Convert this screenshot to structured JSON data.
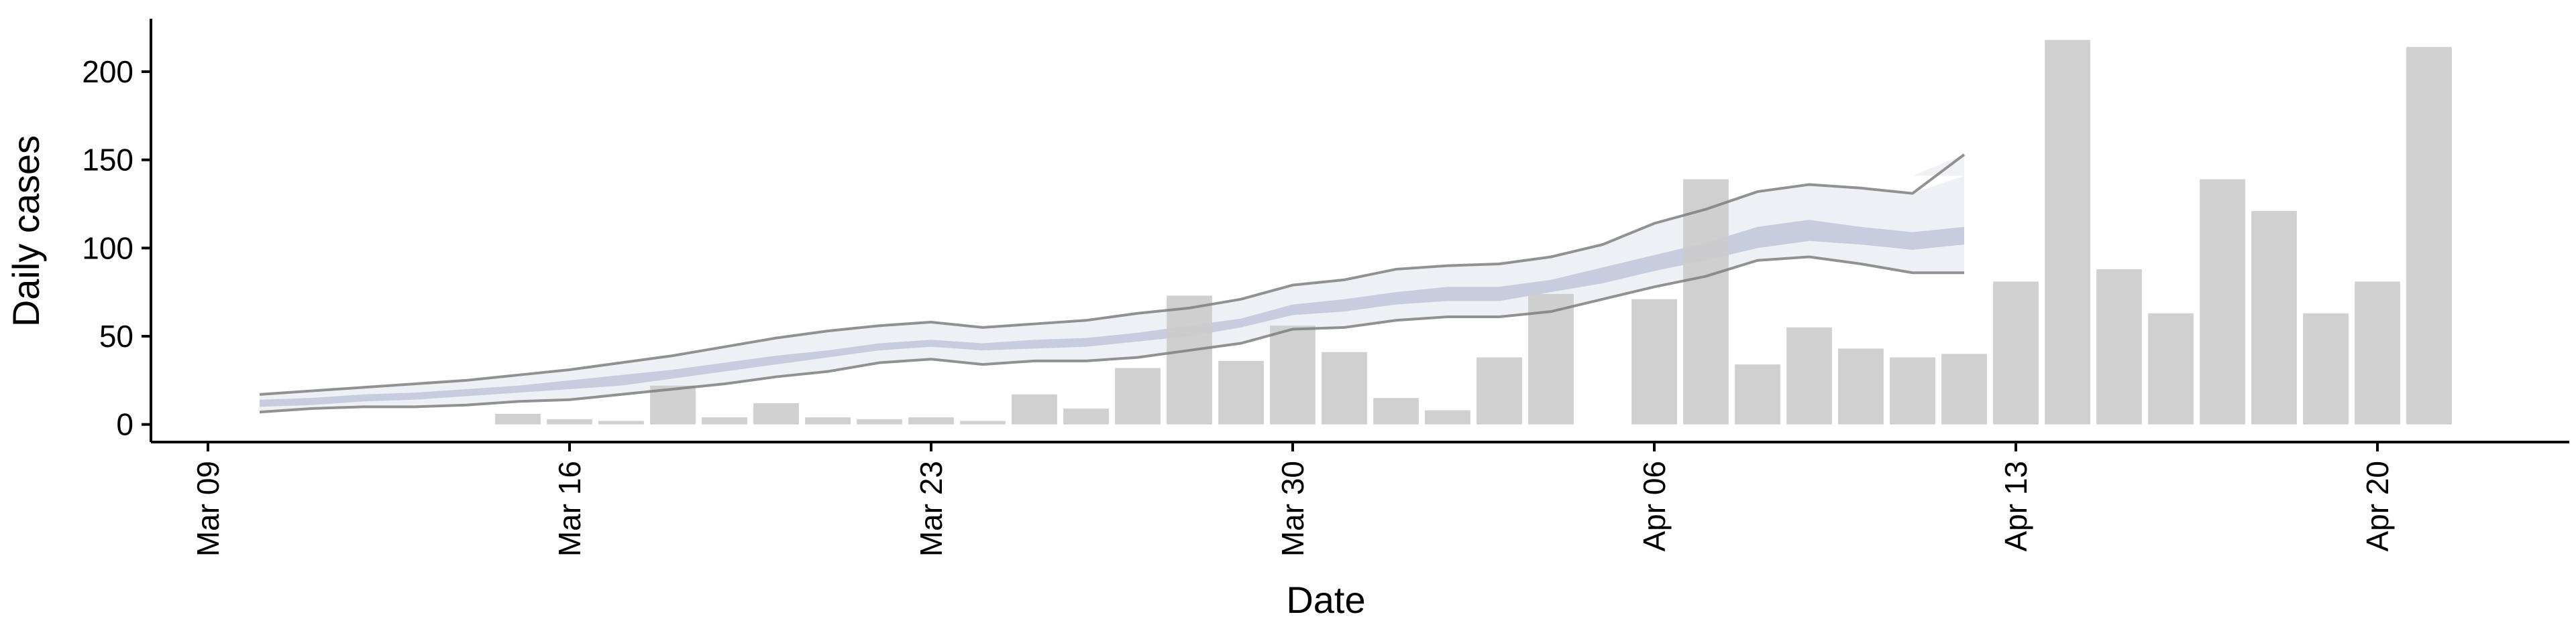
{
  "chart_data": {
    "type": "bar",
    "xlabel": "Date",
    "ylabel": "Daily cases",
    "x_axis_type": "date",
    "xlim": [
      "2020-03-09",
      "2020-04-24"
    ],
    "ylim": [
      -10,
      230
    ],
    "x_ticks": [
      {
        "date": "2020-03-09",
        "label": "Mar 09"
      },
      {
        "date": "2020-03-16",
        "label": "Mar 16"
      },
      {
        "date": "2020-03-23",
        "label": "Mar 23"
      },
      {
        "date": "2020-03-30",
        "label": "Mar 30"
      },
      {
        "date": "2020-04-06",
        "label": "Apr 06"
      },
      {
        "date": "2020-04-13",
        "label": "Apr 13"
      },
      {
        "date": "2020-04-20",
        "label": "Apr 20"
      }
    ],
    "y_ticks": [
      0,
      50,
      100,
      150,
      200
    ],
    "grid": false,
    "legend": "none",
    "colors": {
      "bars": "#cccccc",
      "band_outer": "#dfe3ec",
      "band_inner": "#b9c1d6",
      "bound_lines": "#7f7f7f"
    },
    "bars": [
      {
        "date": "2020-03-15",
        "value": 6
      },
      {
        "date": "2020-03-16",
        "value": 3
      },
      {
        "date": "2020-03-17",
        "value": 2
      },
      {
        "date": "2020-03-18",
        "value": 22
      },
      {
        "date": "2020-03-19",
        "value": 4
      },
      {
        "date": "2020-03-20",
        "value": 12
      },
      {
        "date": "2020-03-21",
        "value": 4
      },
      {
        "date": "2020-03-22",
        "value": 3
      },
      {
        "date": "2020-03-23",
        "value": 4
      },
      {
        "date": "2020-03-24",
        "value": 2
      },
      {
        "date": "2020-03-25",
        "value": 17
      },
      {
        "date": "2020-03-26",
        "value": 9
      },
      {
        "date": "2020-03-27",
        "value": 32
      },
      {
        "date": "2020-03-28",
        "value": 73
      },
      {
        "date": "2020-03-29",
        "value": 36
      },
      {
        "date": "2020-03-30",
        "value": 56
      },
      {
        "date": "2020-03-31",
        "value": 41
      },
      {
        "date": "2020-04-01",
        "value": 15
      },
      {
        "date": "2020-04-02",
        "value": 8
      },
      {
        "date": "2020-04-03",
        "value": 38
      },
      {
        "date": "2020-04-04",
        "value": 74
      },
      {
        "date": "2020-04-05",
        "value": 0
      },
      {
        "date": "2020-04-06",
        "value": 71
      },
      {
        "date": "2020-04-07",
        "value": 139
      },
      {
        "date": "2020-04-08",
        "value": 34
      },
      {
        "date": "2020-04-09",
        "value": 55
      },
      {
        "date": "2020-04-10",
        "value": 43
      },
      {
        "date": "2020-04-11",
        "value": 38
      },
      {
        "date": "2020-04-12",
        "value": 40
      },
      {
        "date": "2020-04-13",
        "value": 81
      },
      {
        "date": "2020-04-14",
        "value": 218
      },
      {
        "date": "2020-04-15",
        "value": 88
      },
      {
        "date": "2020-04-16",
        "value": 63
      },
      {
        "date": "2020-04-17",
        "value": 139
      },
      {
        "date": "2020-04-18",
        "value": 121
      },
      {
        "date": "2020-04-19",
        "value": 63
      },
      {
        "date": "2020-04-20",
        "value": 81
      },
      {
        "date": "2020-04-21",
        "value": 214
      }
    ],
    "estimate_band": {
      "dates": [
        "2020-03-10",
        "2020-03-11",
        "2020-03-12",
        "2020-03-13",
        "2020-03-14",
        "2020-03-15",
        "2020-03-16",
        "2020-03-17",
        "2020-03-18",
        "2020-03-19",
        "2020-03-20",
        "2020-03-21",
        "2020-03-22",
        "2020-03-23",
        "2020-03-24",
        "2020-03-25",
        "2020-03-26",
        "2020-03-27",
        "2020-03-28",
        "2020-03-29",
        "2020-03-30",
        "2020-03-31",
        "2020-04-01",
        "2020-04-02",
        "2020-04-03",
        "2020-04-04",
        "2020-04-05",
        "2020-04-06",
        "2020-04-07",
        "2020-04-08",
        "2020-04-09",
        "2020-04-10",
        "2020-04-11",
        "2020-04-12"
      ],
      "lower_90": [
        7,
        9,
        10,
        10,
        11,
        13,
        14,
        17,
        20,
        23,
        27,
        30,
        35,
        37,
        34,
        36,
        36,
        38,
        42,
        46,
        54,
        55,
        59,
        61,
        61,
        64,
        71,
        78,
        84,
        93,
        95,
        91,
        86,
        86
      ],
      "upper_90": [
        17,
        19,
        21,
        23,
        25,
        28,
        31,
        35,
        39,
        44,
        49,
        53,
        56,
        58,
        55,
        57,
        59,
        63,
        66,
        71,
        79,
        82,
        88,
        90,
        91,
        95,
        102,
        114,
        122,
        132,
        136,
        134,
        131,
        141
      ],
      "lower_50": [
        10,
        11,
        13,
        14,
        16,
        18,
        20,
        22,
        26,
        30,
        34,
        38,
        42,
        44,
        42,
        43,
        44,
        47,
        50,
        55,
        62,
        64,
        68,
        70,
        70,
        75,
        80,
        87,
        93,
        100,
        104,
        102,
        99,
        102
      ],
      "upper_50": [
        14,
        15,
        17,
        18,
        20,
        22,
        25,
        28,
        31,
        35,
        39,
        42,
        46,
        48,
        46,
        48,
        49,
        52,
        56,
        60,
        68,
        71,
        75,
        78,
        78,
        82,
        89,
        96,
        103,
        112,
        116,
        112,
        109,
        112
      ],
      "upper_faded_end": [
        141,
        153
      ]
    }
  }
}
